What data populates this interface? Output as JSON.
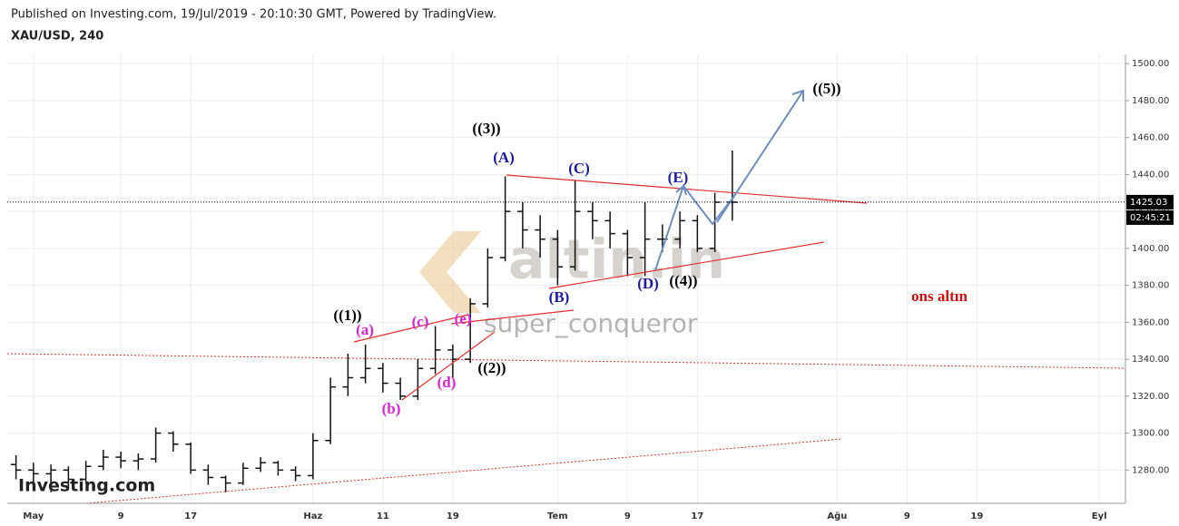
{
  "chart_data": {
    "type": "ohlc",
    "source": "Published on Investing.com, 19/Jul/2019 - 20:10:30 GMT, Powered by TradingView.",
    "title": "XAU/USD, 240",
    "watermark": "altin.in",
    "watermark_user": "super_conqueror",
    "logo": "Investing.com",
    "categories": [
      null,
      "May",
      null,
      null,
      null,
      null,
      "9",
      null,
      null,
      null,
      "17",
      null,
      null,
      null,
      null,
      null,
      null,
      "Haz",
      null,
      null,
      null,
      "11",
      null,
      null,
      null,
      "19",
      null,
      null,
      null,
      null,
      null,
      "Tem",
      null,
      null,
      null,
      "9",
      null,
      null,
      null,
      "17",
      null,
      null,
      null,
      null,
      null,
      null,
      null,
      "Ağu",
      null,
      null,
      null,
      "9",
      null,
      null,
      null,
      "19",
      null,
      null,
      null,
      null,
      null,
      null,
      "Eyl",
      null
    ],
    "open": [
      1283,
      1280,
      1278,
      1280,
      1275,
      1282,
      1287,
      1285,
      1286,
      1300,
      1294,
      1280,
      1276,
      1273,
      1281,
      1284,
      1280,
      1277,
      1296,
      1325,
      1330,
      1335,
      1327,
      1320,
      1335,
      1345,
      1340,
      1370,
      1395,
      1420,
      1410,
      1405,
      1390,
      1420,
      1415,
      1408,
      1395,
      1405,
      1405,
      1415,
      1400,
      1425,
      null,
      null,
      null,
      null,
      null,
      null,
      null,
      null,
      null,
      null,
      null,
      null,
      null,
      null,
      null,
      null,
      null,
      null,
      null,
      null,
      null,
      null
    ],
    "high": [
      1288,
      1284,
      1283,
      1282,
      1285,
      1291,
      1290,
      1289,
      1303,
      1301,
      1295,
      1283,
      1277,
      1284,
      1287,
      1285,
      1282,
      1300,
      1330,
      1343,
      1348,
      1338,
      1330,
      1340,
      1358,
      1348,
      1373,
      1400,
      1439,
      1425,
      1418,
      1410,
      1437,
      1425,
      1420,
      1410,
      1425,
      1413,
      1420,
      1418,
      1430,
      1453,
      null,
      null,
      null,
      null,
      null,
      null,
      null,
      null,
      null,
      null,
      null,
      null,
      null,
      null,
      null,
      null,
      null,
      null,
      null,
      null,
      null,
      null
    ],
    "low": [
      1275,
      1272,
      1268,
      1270,
      1273,
      1280,
      1281,
      1280,
      1284,
      1290,
      1278,
      1272,
      1268,
      1272,
      1279,
      1277,
      1274,
      1275,
      1294,
      1320,
      1327,
      1322,
      1318,
      1318,
      1332,
      1330,
      1338,
      1368,
      1393,
      1400,
      1395,
      1380,
      1388,
      1405,
      1400,
      1385,
      1385,
      1398,
      1400,
      1398,
      1398,
      1415,
      null,
      null,
      null,
      null,
      null,
      null,
      null,
      null,
      null,
      null,
      null,
      null,
      null,
      null,
      null,
      null,
      null,
      null,
      null,
      null,
      null,
      null
    ],
    "close": [
      1280,
      1278,
      1280,
      1275,
      1282,
      1287,
      1285,
      1286,
      1300,
      1294,
      1280,
      1276,
      1273,
      1281,
      1284,
      1280,
      1277,
      1296,
      1325,
      1330,
      1335,
      1327,
      1320,
      1335,
      1345,
      1340,
      1370,
      1395,
      1420,
      1410,
      1405,
      1390,
      1420,
      1415,
      1408,
      1395,
      1405,
      1405,
      1415,
      1400,
      1425,
      1425,
      null,
      null,
      null,
      null,
      null,
      null,
      null,
      null,
      null,
      null,
      null,
      null,
      null,
      null,
      null,
      null,
      null,
      null,
      null,
      null,
      null,
      null
    ],
    "color": "#111111",
    "ylim": [
      1262,
      1505
    ],
    "yticks": [
      {
        "value": 1280,
        "label": "1280.00"
      },
      {
        "value": 1300,
        "label": "1300.00"
      },
      {
        "value": 1320,
        "label": "1320.00"
      },
      {
        "value": 1340,
        "label": "1340.00"
      },
      {
        "value": 1360,
        "label": "1360.00"
      },
      {
        "value": 1380,
        "label": "1380.00"
      },
      {
        "value": 1400,
        "label": "1400.00"
      },
      {
        "value": 1420,
        "label": "1420.00"
      },
      {
        "value": 1440,
        "label": "1440.00"
      },
      {
        "value": 1460,
        "label": "1460.00"
      },
      {
        "value": 1480,
        "label": "1480.00"
      },
      {
        "value": 1500,
        "label": "1500.00"
      }
    ],
    "grid": true,
    "last_price": 1425.03,
    "countdown": "02:45:21",
    "annotations": [
      {
        "text": "((1))",
        "color": "#000000"
      },
      {
        "text": "(a)",
        "color": "#e020d8"
      },
      {
        "text": "(c)",
        "color": "#e020d8"
      },
      {
        "text": "(e)",
        "color": "#e020d8"
      },
      {
        "text": "(b)",
        "color": "#e020d8"
      },
      {
        "text": "(d)",
        "color": "#e020d8"
      },
      {
        "text": "((2))",
        "color": "#000000"
      },
      {
        "text": "((3))",
        "color": "#000000"
      },
      {
        "text": "(A)",
        "color": "#1a1aa8"
      },
      {
        "text": "(C)",
        "color": "#1a1aa8"
      },
      {
        "text": "(B)",
        "color": "#1a1aa8"
      },
      {
        "text": "(E)",
        "color": "#1a1aa8"
      },
      {
        "text": "(D)",
        "color": "#1a1aa8"
      },
      {
        "text": "((4))",
        "color": "#000000"
      },
      {
        "text": "((5))",
        "color": "#000000"
      },
      {
        "text": "ons altın",
        "color": "#d01010"
      }
    ]
  }
}
